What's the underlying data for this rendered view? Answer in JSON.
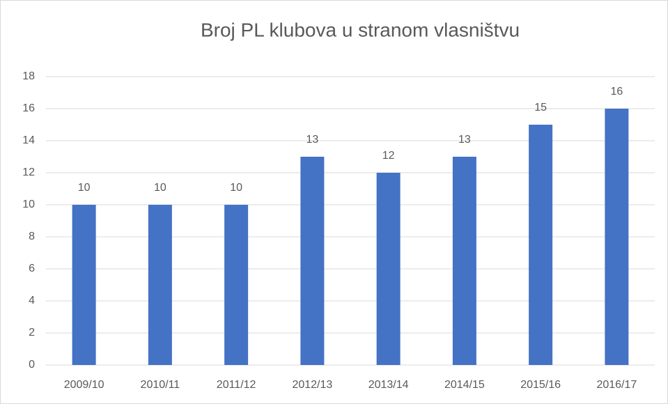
{
  "chart_data": {
    "type": "bar",
    "title": "Broj PL klubova u stranom vlasništvu",
    "categories": [
      "2009/10",
      "2010/11",
      "2011/12",
      "2012/13",
      "2013/14",
      "2014/15",
      "2015/16",
      "2016/17"
    ],
    "values": [
      10,
      10,
      10,
      13,
      12,
      13,
      15,
      16
    ],
    "color": "#4472c4",
    "ylim": [
      0,
      18
    ],
    "yticks": [
      0,
      2,
      4,
      6,
      8,
      10,
      12,
      14,
      16,
      18
    ],
    "grid": true
  }
}
